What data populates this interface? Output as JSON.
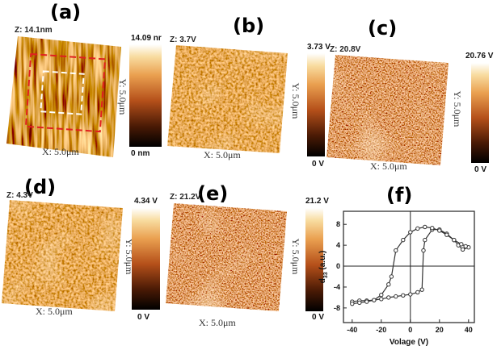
{
  "panels": [
    {
      "label": "(a)",
      "z_label": "Z: 14.1nm",
      "x_axis": "X: 5.0μm",
      "y_axis": "Y: 5.0μm",
      "colorbar_max": "14.09 nr",
      "colorbar_min": "0 nm"
    },
    {
      "label": "(b)",
      "z_label": "Z: 3.7V",
      "x_axis": "X: 5.0μm",
      "y_axis": "Y: 5.0μm",
      "colorbar_max": "3.73 V",
      "colorbar_min": "0 V"
    },
    {
      "label": "(c)",
      "z_label": "Z: 20.8V",
      "x_axis": "X: 5.0μm",
      "y_axis": "Y: 5.0μm",
      "colorbar_max": "20.76 V",
      "colorbar_min": "0 V"
    },
    {
      "label": "(d)",
      "z_label": "Z: 4.3V",
      "x_axis": "X: 5.0μm",
      "y_axis": "Y: 5.0μm",
      "colorbar_max": "4.34 V",
      "colorbar_min": "0 V"
    },
    {
      "label": "(e)",
      "z_label": "Z: 21.2V",
      "x_axis": "X: 5.0μm",
      "y_axis": "Y: 5.0μm",
      "colorbar_max": "21.2 V",
      "colorbar_min": "0 V"
    }
  ],
  "chart_data": {
    "type": "line",
    "label": "(f)",
    "x_label": "Volage (V)",
    "y_label": [
      "d",
      "33",
      " (a.u.)"
    ],
    "x": [
      -40,
      -35,
      -30,
      -25,
      -20,
      -15,
      -10,
      -5,
      0,
      5,
      8,
      9,
      10,
      15,
      20,
      25,
      30,
      33,
      36,
      40,
      38,
      35,
      30,
      25,
      20,
      15,
      10,
      5,
      0,
      -5,
      -10,
      -13,
      -15,
      -20,
      -25,
      -30,
      -35,
      -40
    ],
    "series": [
      {
        "color": "#333333",
        "values": [
          -6.8,
          -6.6,
          -6.6,
          -6.5,
          -6.3,
          -6.0,
          -5.8,
          -5.6,
          -5.4,
          -5,
          -4.5,
          3,
          5,
          7,
          7,
          6.2,
          5,
          4,
          3.2,
          3.6,
          3.8,
          4.2,
          5,
          6,
          6.8,
          7.3,
          7.5,
          7.2,
          6.5,
          5,
          3,
          -2,
          -3.5,
          -5.5,
          -6.5,
          -6.8,
          -7,
          -7.2
        ]
      }
    ],
    "xlim": [
      -46,
      44
    ],
    "ylim": [
      -10.8,
      10.5
    ],
    "xticks": [
      -40,
      -20,
      0,
      20,
      40
    ],
    "yticks": [
      -8,
      -4,
      0,
      4,
      8
    ]
  }
}
